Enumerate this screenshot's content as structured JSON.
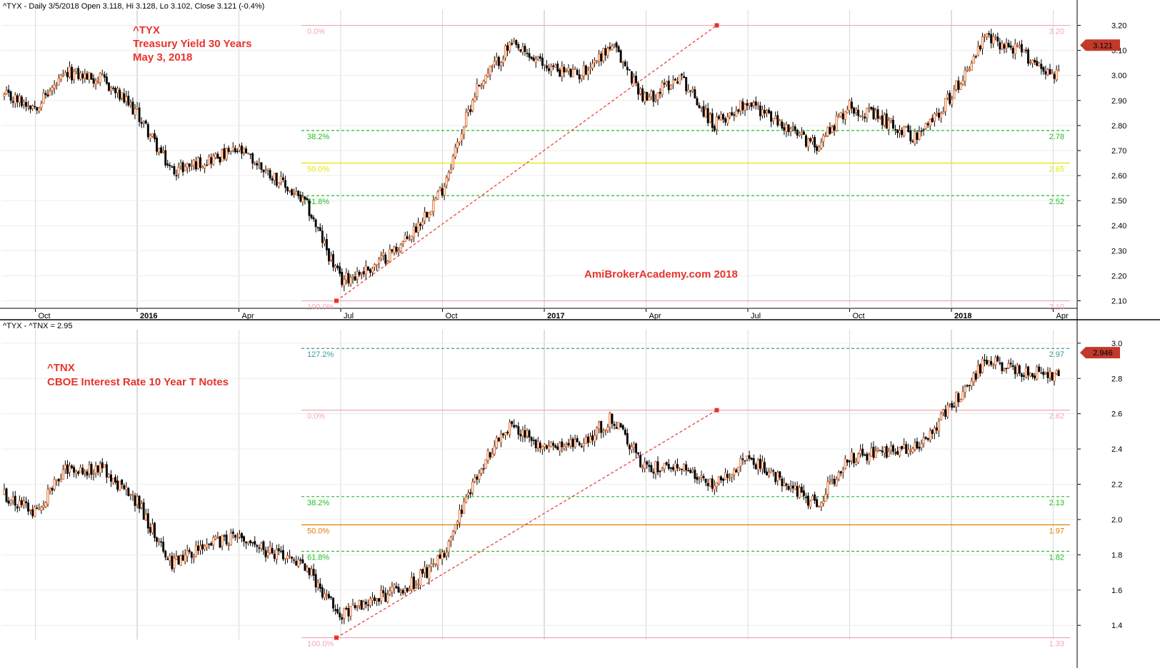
{
  "chart_data": [
    {
      "type": "candlestick",
      "id": "tyx",
      "header": "^TYX - Daily 3/5/2018 Open 3.118, Hi 3.128, Lo 3.102, Close 3.121 (-0.4%)",
      "annotations": [
        "^TYX",
        "Treasury Yield 30 Years",
        "May 3, 2018"
      ],
      "watermark": "AmiBrokerAcademy.com   2018",
      "ylim": [
        2.07,
        3.25
      ],
      "y_ticks": [
        "2.10",
        "2.20",
        "2.30",
        "2.40",
        "2.50",
        "2.60",
        "2.70",
        "2.80",
        "2.90",
        "3.00",
        "3.10",
        "3.20"
      ],
      "x_labels": [
        "Oct",
        "2016",
        "Apr",
        "Jul",
        "Oct",
        "2017",
        "Apr",
        "Jul",
        "Oct",
        "2018",
        "Apr"
      ],
      "last_value": "3.121",
      "grid": true,
      "fib_levels": [
        {
          "pct": "0.0%",
          "value": "3.20",
          "color": "#f2a7b1",
          "style": "solid"
        },
        {
          "pct": "38.2%",
          "value": "2.78",
          "color": "#1fbe1f",
          "style": "dashed"
        },
        {
          "pct": "50.0%",
          "value": "2.65",
          "color": "#e6e600",
          "style": "solid"
        },
        {
          "pct": "61.8%",
          "value": "2.52",
          "color": "#1fbe1f",
          "style": "dashed"
        },
        {
          "pct": "100.0%",
          "value": "2.10",
          "color": "#f2a7b1",
          "style": "solid"
        }
      ],
      "trendline": {
        "from": [
          "2016-07",
          2.1
        ],
        "to": [
          "2017-06",
          3.2
        ],
        "color": "#e8332e"
      },
      "series_path": [
        [
          "2015-09",
          2.92
        ],
        [
          "2015-10",
          2.88
        ],
        [
          "2015-11",
          3.01
        ],
        [
          "2015-12",
          2.98
        ],
        [
          "2016-01",
          2.85
        ],
        [
          "2016-02",
          2.62
        ],
        [
          "2016-03",
          2.66
        ],
        [
          "2016-04",
          2.7
        ],
        [
          "2016-05",
          2.6
        ],
        [
          "2016-06",
          2.48
        ],
        [
          "2016-07",
          2.18
        ],
        [
          "2016-08",
          2.24
        ],
        [
          "2016-09",
          2.35
        ],
        [
          "2016-10",
          2.55
        ],
        [
          "2016-11",
          2.95
        ],
        [
          "2016-12",
          3.12
        ],
        [
          "2017-01",
          3.04
        ],
        [
          "2017-02",
          3.0
        ],
        [
          "2017-03",
          3.12
        ],
        [
          "2017-04",
          2.9
        ],
        [
          "2017-05",
          3.0
        ],
        [
          "2017-06",
          2.8
        ],
        [
          "2017-07",
          2.9
        ],
        [
          "2017-08",
          2.8
        ],
        [
          "2017-09",
          2.72
        ],
        [
          "2017-10",
          2.88
        ],
        [
          "2017-11",
          2.82
        ],
        [
          "2017-12",
          2.75
        ],
        [
          "2018-01",
          2.92
        ],
        [
          "2018-02",
          3.15
        ],
        [
          "2018-03",
          3.1
        ],
        [
          "2018-04",
          3.0
        ],
        [
          "2018-05",
          3.121
        ]
      ]
    },
    {
      "type": "candlestick",
      "id": "tnx",
      "header": "^TYX - ^TNX = 2.95",
      "annotations": [
        "^TNX",
        "CBOE Interest Rate 10 Year T Notes"
      ],
      "ylim": [
        1.32,
        3.06
      ],
      "y_ticks": [
        "1.4",
        "1.6",
        "1.8",
        "2.0",
        "2.2",
        "2.4",
        "2.6",
        "2.8",
        "3.0"
      ],
      "last_value": "2.946",
      "grid": true,
      "fib_levels": [
        {
          "pct": "127.2%",
          "value": "2.97",
          "color": "#3c9a9a",
          "style": "dashed"
        },
        {
          "pct": "0.0%",
          "value": "2.62",
          "color": "#f2a7b1",
          "style": "solid"
        },
        {
          "pct": "38.2%",
          "value": "2.13",
          "color": "#1fbe1f",
          "style": "dashed"
        },
        {
          "pct": "50.0%",
          "value": "1.97",
          "color": "#e07b00",
          "style": "solid"
        },
        {
          "pct": "61.8%",
          "value": "1.82",
          "color": "#1fbe1f",
          "style": "dashed"
        },
        {
          "pct": "100.0%",
          "value": "1.33",
          "color": "#f2a7b1",
          "style": "solid"
        }
      ],
      "trendline": {
        "from": [
          "2016-07",
          1.33
        ],
        "to": [
          "2017-06",
          2.62
        ],
        "color": "#e8332e"
      },
      "series_path": [
        [
          "2015-09",
          2.15
        ],
        [
          "2015-10",
          2.05
        ],
        [
          "2015-11",
          2.3
        ],
        [
          "2015-12",
          2.28
        ],
        [
          "2016-01",
          2.1
        ],
        [
          "2016-02",
          1.75
        ],
        [
          "2016-03",
          1.85
        ],
        [
          "2016-04",
          1.9
        ],
        [
          "2016-05",
          1.8
        ],
        [
          "2016-06",
          1.72
        ],
        [
          "2016-07",
          1.45
        ],
        [
          "2016-08",
          1.55
        ],
        [
          "2016-09",
          1.62
        ],
        [
          "2016-10",
          1.78
        ],
        [
          "2016-11",
          2.25
        ],
        [
          "2016-12",
          2.55
        ],
        [
          "2017-01",
          2.4
        ],
        [
          "2017-02",
          2.42
        ],
        [
          "2017-03",
          2.58
        ],
        [
          "2017-04",
          2.28
        ],
        [
          "2017-05",
          2.32
        ],
        [
          "2017-06",
          2.18
        ],
        [
          "2017-07",
          2.35
        ],
        [
          "2017-08",
          2.22
        ],
        [
          "2017-09",
          2.08
        ],
        [
          "2017-10",
          2.35
        ],
        [
          "2017-11",
          2.38
        ],
        [
          "2017-12",
          2.4
        ],
        [
          "2018-01",
          2.65
        ],
        [
          "2018-02",
          2.9
        ],
        [
          "2018-03",
          2.85
        ],
        [
          "2018-04",
          2.82
        ],
        [
          "2018-05",
          2.946
        ]
      ]
    }
  ],
  "colors": {
    "up_candle": "#e0621f",
    "down_candle": "#000000",
    "annotation": "#e8332e",
    "last_badge": "#c0392b",
    "grid": "#c8c8c8"
  }
}
